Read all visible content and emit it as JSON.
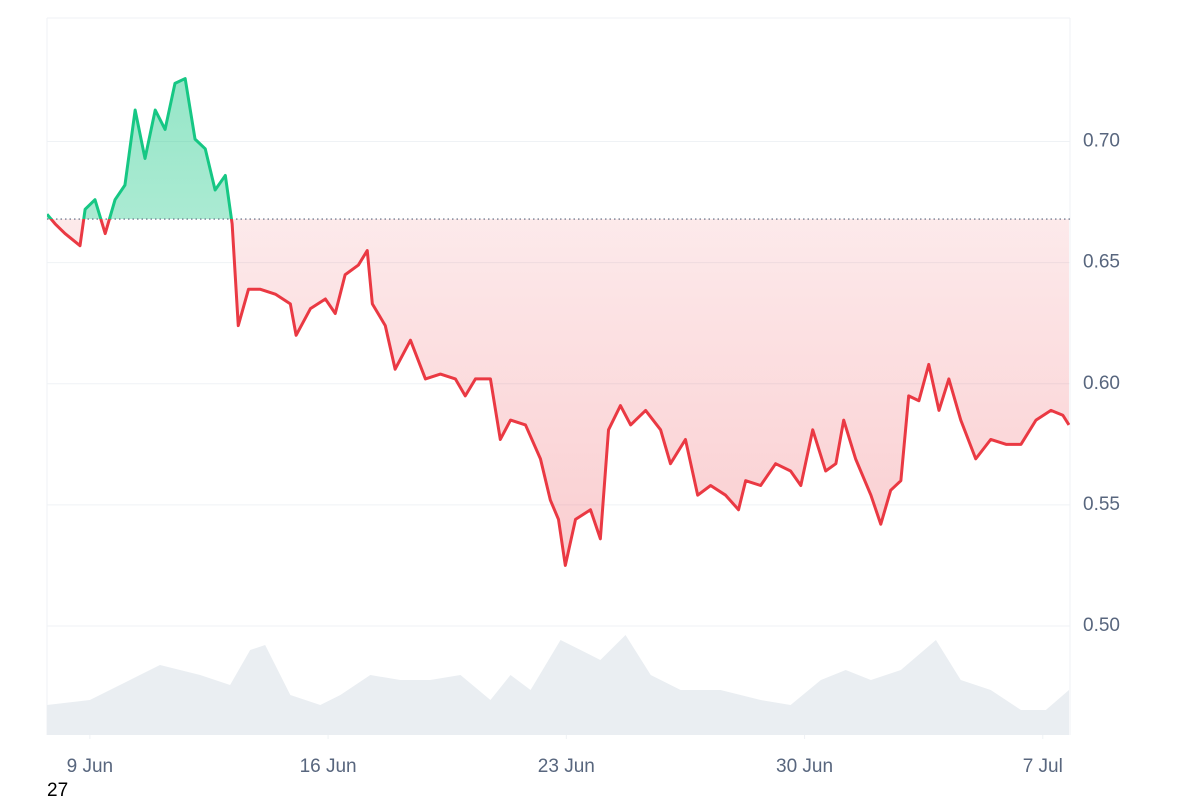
{
  "chart_data": {
    "type": "line",
    "x": [
      7.74,
      7.98,
      8.27,
      8.71,
      8.86,
      9.15,
      9.45,
      9.74,
      10.03,
      10.33,
      10.62,
      10.92,
      11.21,
      11.5,
      11.8,
      12.09,
      12.39,
      12.68,
      12.98,
      13.18,
      13.36,
      13.66,
      14.01,
      14.45,
      14.89,
      15.06,
      15.48,
      15.92,
      16.21,
      16.5,
      16.89,
      17.15,
      17.3,
      17.68,
      17.97,
      18.42,
      18.86,
      19.3,
      19.74,
      20.03,
      20.33,
      20.77,
      21.06,
      21.36,
      21.8,
      22.24,
      22.53,
      22.77,
      22.97,
      23.27,
      23.71,
      24.0,
      24.24,
      24.59,
      24.89,
      25.33,
      25.77,
      26.06,
      26.5,
      26.86,
      27.24,
      27.68,
      28.06,
      28.27,
      28.71,
      29.15,
      29.59,
      29.89,
      30.24,
      30.62,
      30.92,
      31.15,
      31.5,
      31.95,
      32.24,
      32.53,
      32.83,
      33.06,
      33.36,
      33.65,
      33.95,
      34.24,
      34.59,
      35.03,
      35.47,
      35.92,
      36.36,
      36.8,
      37.24,
      37.59,
      37.77
    ],
    "values": [
      0.67,
      0.666,
      0.662,
      0.657,
      0.672,
      0.676,
      0.662,
      0.676,
      0.682,
      0.713,
      0.693,
      0.713,
      0.705,
      0.724,
      0.726,
      0.701,
      0.697,
      0.68,
      0.686,
      0.666,
      0.624,
      0.639,
      0.639,
      0.637,
      0.633,
      0.62,
      0.631,
      0.635,
      0.629,
      0.645,
      0.649,
      0.655,
      0.633,
      0.624,
      0.606,
      0.618,
      0.602,
      0.604,
      0.602,
      0.595,
      0.602,
      0.602,
      0.577,
      0.585,
      0.583,
      0.569,
      0.552,
      0.544,
      0.525,
      0.544,
      0.548,
      0.536,
      0.581,
      0.591,
      0.583,
      0.589,
      0.581,
      0.567,
      0.577,
      0.554,
      0.558,
      0.554,
      0.548,
      0.56,
      0.558,
      0.567,
      0.564,
      0.558,
      0.581,
      0.564,
      0.567,
      0.585,
      0.569,
      0.554,
      0.542,
      0.556,
      0.56,
      0.595,
      0.593,
      0.608,
      0.589,
      0.602,
      0.585,
      0.569,
      0.577,
      0.575,
      0.575,
      0.585,
      0.589,
      0.587,
      0.583
    ],
    "baseline": 0.668,
    "up_color": "#16c784",
    "down_color": "#ea3943",
    "volume": {
      "x": [
        7.74,
        9.0,
        10.47,
        11.06,
        12.24,
        13.12,
        13.71,
        14.15,
        14.89,
        15.77,
        16.36,
        17.24,
        18.12,
        19.0,
        19.89,
        20.77,
        21.36,
        21.95,
        22.83,
        23.42,
        24.0,
        24.74,
        25.48,
        26.36,
        27.53,
        28.71,
        29.59,
        30.48,
        31.21,
        31.95,
        32.83,
        33.86,
        34.59,
        35.47,
        36.36,
        37.09,
        37.77
      ],
      "values": [
        30,
        35,
        60,
        70,
        60,
        50,
        85,
        90,
        40,
        30,
        40,
        60,
        55,
        55,
        60,
        35,
        60,
        45,
        95,
        85,
        75,
        100,
        60,
        45,
        45,
        35,
        30,
        55,
        65,
        55,
        65,
        95,
        55,
        45,
        25,
        25,
        45
      ],
      "color": "#eaeef2"
    },
    "xlim": [
      7.74,
      37.8
    ],
    "ylim": [
      0.455,
      0.751
    ],
    "xticks": [
      {
        "value": 9,
        "label": "9 Jun"
      },
      {
        "value": 16,
        "label": "16 Jun"
      },
      {
        "value": 23,
        "label": "23 Jun"
      },
      {
        "value": 30,
        "label": "30 Jun"
      },
      {
        "value": 37,
        "label": "7 Jul"
      }
    ],
    "yticks": [
      {
        "value": 0.5,
        "label": "0.50"
      },
      0.55,
      {
        "value": 0.6,
        "label": "0.60"
      },
      0.65,
      {
        "value": 0.7,
        "label": "0.70"
      }
    ],
    "footnote": "27"
  }
}
